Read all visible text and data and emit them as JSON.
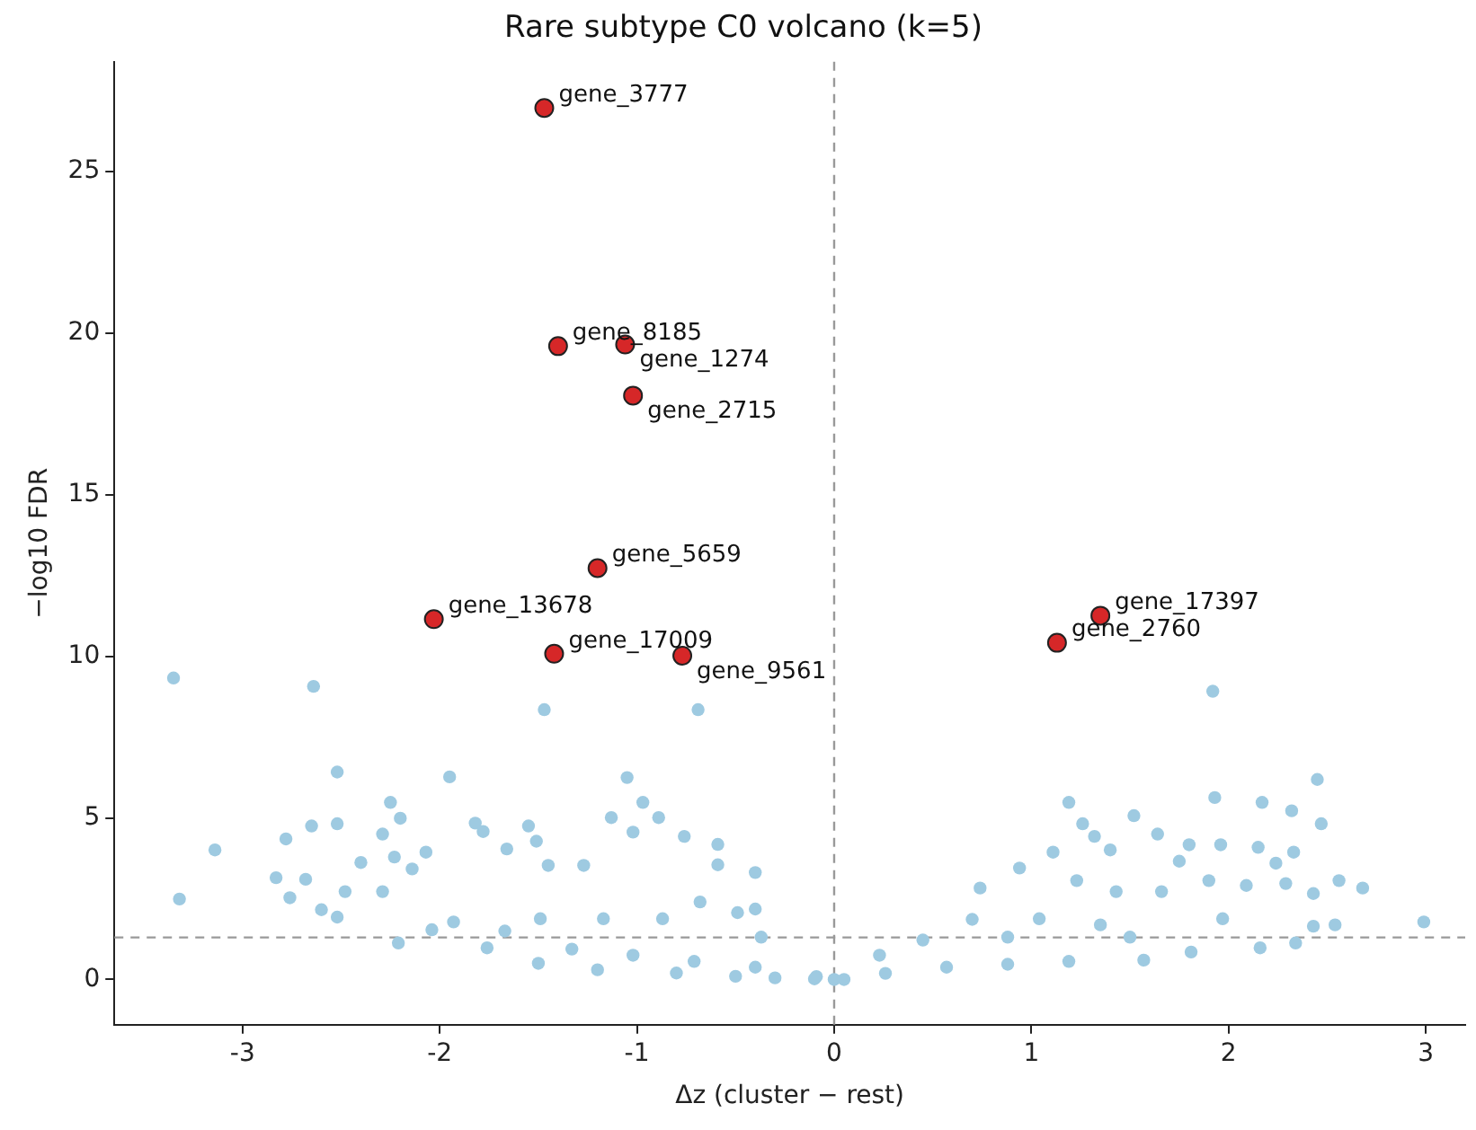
{
  "chart_data": {
    "type": "scatter",
    "title": "Rare subtype C0 volcano (k=5)",
    "xlabel": "Δz (cluster − rest)",
    "ylabel": "−log10 FDR",
    "xlim": [
      -3.65,
      3.2
    ],
    "ylim": [
      -1.4,
      28.4
    ],
    "xticks": [
      -3,
      -2,
      -1,
      0,
      1,
      2,
      3
    ],
    "yticks": [
      0,
      5,
      10,
      15,
      20,
      25
    ],
    "grid": false,
    "legend": false,
    "marker": "circle",
    "series": [
      {
        "color": "#9ecae1",
        "x": [
          -3.35,
          -2.64,
          -1.47,
          -0.69,
          -2.52,
          -1.95,
          -1.05,
          -2.25,
          -2.2,
          -2.65,
          -2.52,
          -2.78,
          -3.14,
          -3.32,
          -2.83,
          -2.76,
          -2.68,
          -2.6,
          -2.52,
          -2.48,
          -2.4,
          -2.29,
          -2.23,
          -2.21,
          -2.29,
          -2.07,
          -2.14,
          -2.04,
          -1.93,
          -1.82,
          -1.78,
          -1.76,
          -1.66,
          -1.55,
          -1.51,
          -1.45,
          -1.27,
          -1.13,
          -0.97,
          -0.89,
          -1.02,
          -0.76,
          -0.59,
          -0.59,
          -0.4,
          -0.4,
          -0.49,
          -0.68,
          -0.87,
          -1.17,
          -1.49,
          -1.67,
          -1.33,
          -1.02,
          -0.71,
          -0.4,
          -0.09,
          -0.37,
          -1.5,
          -1.2,
          -0.8,
          -0.5,
          -0.3,
          -0.1,
          0,
          1.92,
          2.45,
          1.93,
          1.19,
          2.17,
          2.32,
          2.47,
          1.52,
          1.26,
          1.32,
          1.4,
          1.11,
          1.64,
          1.8,
          1.75,
          1.96,
          2.15,
          2.33,
          2.24,
          2.56,
          2.68,
          2.99,
          2.54,
          2.43,
          2.43,
          2.29,
          2.09,
          1.9,
          0.94,
          0.74,
          0.7,
          1.23,
          1.43,
          1.66,
          2.34,
          2.16,
          1.81,
          1.57,
          1.19,
          0.88,
          0.23,
          0.45,
          0.57,
          0.26,
          0.05,
          1.04,
          1.35,
          1.97,
          1.5,
          0.88
        ],
        "values": [
          9.33,
          9.07,
          8.35,
          8.35,
          6.42,
          6.27,
          6.25,
          5.48,
          4.99,
          4.75,
          4.82,
          4.35,
          4.01,
          2.49,
          3.15,
          2.53,
          3.1,
          2.16,
          1.93,
          2.72,
          3.62,
          4.5,
          3.79,
          1.13,
          2.72,
          3.94,
          3.42,
          1.54,
          1.78,
          4.84,
          4.58,
          0.98,
          4.04,
          4.75,
          4.28,
          3.53,
          3.53,
          5.01,
          5.48,
          5.01,
          4.56,
          4.43,
          4.18,
          3.55,
          3.31,
          2.18,
          2.07,
          2.4,
          1.88,
          1.88,
          1.88,
          1.5,
          0.94,
          0.75,
          0.56,
          0.38,
          0.09,
          1.31,
          0.5,
          0.3,
          0.2,
          0.1,
          0.05,
          0.02,
          0,
          8.92,
          6.19,
          5.63,
          5.48,
          5.48,
          5.22,
          4.82,
          5.07,
          4.82,
          4.43,
          4.01,
          3.94,
          4.5,
          4.17,
          3.66,
          4.17,
          4.09,
          3.94,
          3.6,
          3.06,
          2.83,
          1.78,
          1.69,
          1.65,
          2.66,
          2.97,
          2.91,
          3.06,
          3.45,
          2.83,
          1.86,
          3.06,
          2.72,
          2.72,
          1.13,
          0.98,
          0.85,
          0.6,
          0.56,
          0.47,
          0.75,
          1.22,
          0.38,
          0.19,
          0,
          1.88,
          1.69,
          1.88,
          1.31,
          1.31
        ]
      },
      {
        "color": "#d62728",
        "x": [
          -1.47,
          -1.4,
          -1.06,
          -1.02,
          -1.2,
          -2.03,
          -1.42,
          -0.77,
          1.35,
          1.13
        ],
        "values": [
          26.97,
          19.6,
          19.65,
          18.07,
          12.73,
          11.15,
          10.08,
          10.02,
          11.26,
          10.42
        ]
      }
    ],
    "ref_lines": [
      {
        "axis": "y",
        "value": 1.3,
        "color": "#999999",
        "line_style": "dashed"
      },
      {
        "axis": "x",
        "value": 0,
        "color": "#999999",
        "line_style": "dashed"
      }
    ],
    "annotations": [
      {
        "text": "gene_3777",
        "x": -1.47,
        "y": 26.97
      },
      {
        "text": "gene_8185",
        "x": -1.4,
        "y": 19.6
      },
      {
        "text": "gene_1274",
        "x": -1.06,
        "y": 19.65
      },
      {
        "text": "gene_2715",
        "x": -1.02,
        "y": 18.07
      },
      {
        "text": "gene_5659",
        "x": -1.2,
        "y": 12.73
      },
      {
        "text": "gene_13678",
        "x": -2.03,
        "y": 11.15
      },
      {
        "text": "gene_17009",
        "x": -1.42,
        "y": 10.08
      },
      {
        "text": "gene_9561",
        "x": -0.77,
        "y": 10.02
      },
      {
        "text": "gene_17397",
        "x": 1.35,
        "y": 11.26
      },
      {
        "text": "gene_2760",
        "x": 1.13,
        "y": 10.42
      }
    ]
  }
}
